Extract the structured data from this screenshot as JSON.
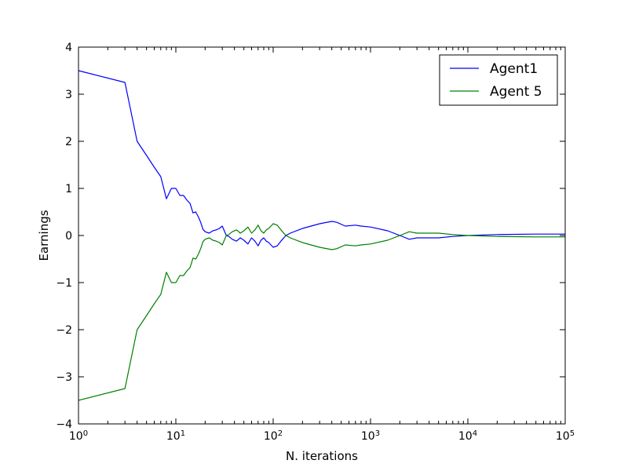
{
  "chart_data": {
    "type": "line",
    "title": "",
    "xlabel": "N. iterations",
    "ylabel": "Earnings",
    "xscale": "log",
    "xlim": [
      1,
      100000
    ],
    "ylim": [
      -4,
      4
    ],
    "grid": false,
    "legend_position": "top-right",
    "x_tick_labels": [
      {
        "base": "10",
        "exp": "0"
      },
      {
        "base": "10",
        "exp": "1"
      },
      {
        "base": "10",
        "exp": "2"
      },
      {
        "base": "10",
        "exp": "3"
      },
      {
        "base": "10",
        "exp": "4"
      },
      {
        "base": "10",
        "exp": "5"
      }
    ],
    "y_tick_labels": [
      "4",
      "3",
      "2",
      "1",
      "0",
      "−1",
      "−2",
      "−3",
      "−4"
    ],
    "series": [
      {
        "name": "Agent1",
        "color": "#0000ff",
        "x": [
          1,
          3,
          4,
          5,
          6,
          7,
          8,
          9,
          10,
          11,
          12,
          13,
          14,
          15,
          16,
          17,
          18,
          19,
          20,
          22,
          24,
          26,
          28,
          30,
          33,
          35,
          38,
          42,
          46,
          50,
          55,
          60,
          65,
          70,
          75,
          80,
          85,
          90,
          100,
          110,
          120,
          135,
          150,
          200,
          300,
          400,
          450,
          550,
          700,
          800,
          1000,
          1500,
          2000,
          2500,
          3000,
          5000,
          7000,
          10000,
          20000,
          50000,
          100000
        ],
        "y": [
          3.5,
          3.25,
          2.0,
          1.7,
          1.45,
          1.25,
          0.78,
          1.0,
          1.0,
          0.85,
          0.85,
          0.75,
          0.68,
          0.48,
          0.5,
          0.4,
          0.28,
          0.13,
          0.08,
          0.05,
          0.1,
          0.12,
          0.15,
          0.2,
          0.0,
          -0.02,
          -0.08,
          -0.12,
          -0.05,
          -0.1,
          -0.18,
          -0.05,
          -0.12,
          -0.22,
          -0.1,
          -0.05,
          -0.12,
          -0.15,
          -0.25,
          -0.22,
          -0.12,
          0.0,
          0.05,
          0.15,
          0.25,
          0.3,
          0.28,
          0.2,
          0.22,
          0.2,
          0.18,
          0.1,
          0.0,
          -0.08,
          -0.05,
          -0.05,
          -0.02,
          0.0,
          0.02,
          0.03,
          0.03
        ]
      },
      {
        "name": "Agent 5",
        "color": "#008000",
        "x": [
          1,
          3,
          4,
          5,
          6,
          7,
          8,
          9,
          10,
          11,
          12,
          13,
          14,
          15,
          16,
          17,
          18,
          19,
          20,
          22,
          24,
          26,
          28,
          30,
          33,
          35,
          38,
          42,
          46,
          50,
          55,
          60,
          65,
          70,
          75,
          80,
          85,
          90,
          100,
          110,
          120,
          135,
          150,
          200,
          300,
          400,
          450,
          550,
          700,
          800,
          1000,
          1500,
          2000,
          2500,
          3000,
          5000,
          7000,
          10000,
          20000,
          50000,
          100000
        ],
        "y": [
          -3.5,
          -3.25,
          -2.0,
          -1.7,
          -1.45,
          -1.25,
          -0.78,
          -1.0,
          -1.0,
          -0.85,
          -0.85,
          -0.75,
          -0.68,
          -0.48,
          -0.5,
          -0.4,
          -0.28,
          -0.13,
          -0.08,
          -0.05,
          -0.1,
          -0.12,
          -0.15,
          -0.2,
          0.0,
          0.02,
          0.08,
          0.12,
          0.05,
          0.1,
          0.18,
          0.05,
          0.12,
          0.22,
          0.1,
          0.05,
          0.12,
          0.15,
          0.25,
          0.22,
          0.12,
          0.0,
          -0.05,
          -0.15,
          -0.25,
          -0.3,
          -0.28,
          -0.2,
          -0.22,
          -0.2,
          -0.18,
          -0.1,
          0.0,
          0.08,
          0.05,
          0.05,
          0.02,
          0.0,
          -0.02,
          -0.03,
          -0.03
        ]
      }
    ]
  }
}
